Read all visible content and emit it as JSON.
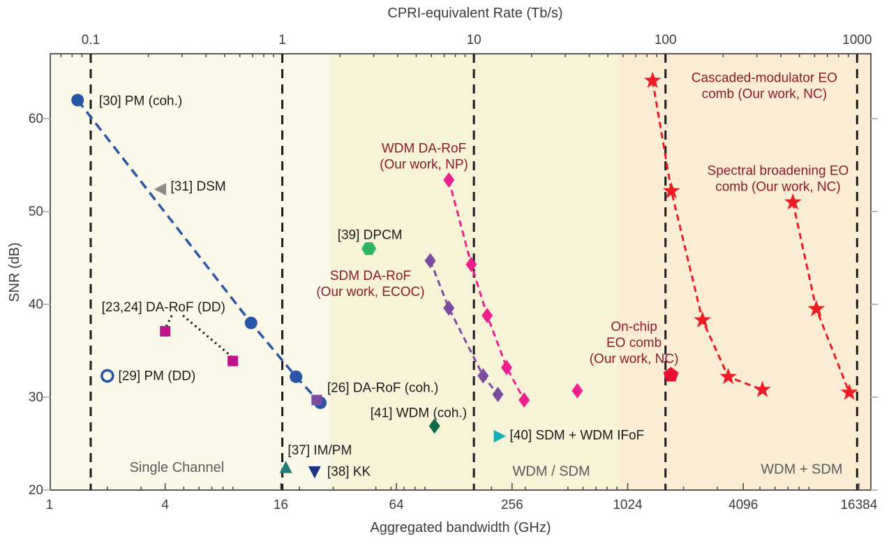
{
  "chart_data": {
    "type": "scatter",
    "top_axis": {
      "title": "CPRI-equivalent Rate (Tb/s)",
      "tick_values": [
        0.1,
        1,
        10,
        100,
        1000
      ],
      "tick_labels": [
        "0.1",
        "1",
        "10",
        "100",
        "1000"
      ]
    },
    "bottom_axis": {
      "title": "Aggregated bandwidth (GHz)",
      "tick_values": [
        1,
        4,
        16,
        64,
        256,
        1024,
        4096,
        16384
      ],
      "tick_labels": [
        "1",
        "4",
        "16",
        "64",
        "256",
        "1024",
        "4096",
        "16384"
      ]
    },
    "left_axis": {
      "title": "SNR (dB)",
      "tick_values": [
        20,
        30,
        40,
        50,
        60
      ],
      "tick_labels": [
        "20",
        "30",
        "40",
        "50",
        "60"
      ]
    },
    "xlim_ghz": [
      1,
      18900
    ],
    "ylim_db": [
      20,
      67
    ],
    "grid": "vertical-dashed",
    "gridlines_cpri_tbs": [
      0.1,
      1,
      10,
      100,
      1000
    ],
    "regions": [
      {
        "label": "Single Channel",
        "from_ghz": 1,
        "to_ghz": 29,
        "fill": "#FAF8E8",
        "label_ghz": 4.6,
        "label_snr": 22.4
      },
      {
        "label": "WDM / SDM",
        "from_ghz": 29,
        "to_ghz": 905,
        "fill": "#F7F3D6",
        "label_ghz": 410,
        "label_snr": 22.0
      },
      {
        "label": "WDM + SDM",
        "from_ghz": 905,
        "to_ghz": 18900,
        "fill": "#FAEDD4",
        "label_ghz": 8250,
        "label_snr": 22.2
      }
    ],
    "region_label_color": "#5a5a5a",
    "series": [
      {
        "name": "[30] PM (coh.)",
        "marker": "circle",
        "color": "#2A55A6",
        "line": "dashed",
        "points": [
          [
            1.4,
            62.0
          ],
          [
            11.2,
            38.0
          ],
          [
            19.2,
            32.2
          ],
          [
            25.7,
            29.4
          ]
        ]
      },
      {
        "name": "[31] DSM",
        "marker": "triangle-left",
        "color": "#8C8C8C",
        "line": "none",
        "points": [
          [
            3.8,
            52.4
          ]
        ]
      },
      {
        "name": "[23,24] DA-RoF (DD)",
        "marker": "square",
        "color": "#C0148C",
        "line": "none",
        "points": [
          [
            4.0,
            37.1
          ],
          [
            9.0,
            33.9
          ]
        ]
      },
      {
        "name": "[29] PM (DD)",
        "marker": "circle-open",
        "color": "#2A55A6",
        "line": "none",
        "points": [
          [
            2.0,
            32.3
          ]
        ]
      },
      {
        "name": "[26] DA-RoF (coh.)",
        "marker": "square",
        "color": "#7C4BA0",
        "line": "none",
        "points": [
          [
            24.6,
            29.7
          ]
        ]
      },
      {
        "name": "[39] DPCM",
        "marker": "hexagon",
        "color": "#2FB45F",
        "line": "none",
        "points": [
          [
            46,
            46.0
          ]
        ]
      },
      {
        "name": "SDM DA-RoF (Our work, ECOC)",
        "marker": "diamond",
        "color": "#7C4BA0",
        "line": "dashed",
        "points": [
          [
            96,
            44.7
          ],
          [
            120,
            39.6
          ],
          [
            181,
            32.3
          ],
          [
            216,
            30.3
          ]
        ]
      },
      {
        "name": "WDM DA-RoF (Our work, NP)",
        "marker": "diamond",
        "color": "#ED1E8F",
        "line": "dashed",
        "points": [
          [
            120,
            53.4
          ],
          [
            157,
            44.3
          ],
          [
            190,
            38.8
          ],
          [
            240,
            33.2
          ],
          [
            296,
            29.7
          ]
        ]
      },
      {
        "name": "WDM DA-RoF (Our work, NP) extra point",
        "marker": "diamond",
        "color": "#ED1E8F",
        "line": "none",
        "points": [
          [
            560,
            30.7
          ]
        ]
      },
      {
        "name": "[41] WDM (coh.)",
        "marker": "diamond",
        "color": "#0E6B45",
        "line": "none",
        "points": [
          [
            101,
            26.9
          ]
        ]
      },
      {
        "name": "[37] IM/PM",
        "marker": "triangle-up",
        "color": "#207F78",
        "line": "none",
        "points": [
          [
            17,
            22.4
          ]
        ]
      },
      {
        "name": "[38] KK",
        "marker": "triangle-down",
        "color": "#1B3387",
        "line": "none",
        "points": [
          [
            24,
            22.0
          ]
        ]
      },
      {
        "name": "[40] SDM + WDM IFoF",
        "marker": "triangle-right",
        "color": "#12ADB5",
        "line": "none",
        "points": [
          [
            219,
            25.8
          ]
        ]
      },
      {
        "name": "Cascaded-modulator EO comb (Our work, NC)",
        "marker": "star",
        "color": "#EC1C24",
        "line": "dashed",
        "points": [
          [
            1380,
            64.1
          ],
          [
            1730,
            52.2
          ],
          [
            2510,
            38.3
          ],
          [
            3420,
            32.2
          ],
          [
            5150,
            30.8
          ]
        ]
      },
      {
        "name": "Spectral broadening EO comb (Our work, NC)",
        "marker": "star",
        "color": "#EC1C24",
        "line": "dashed",
        "points": [
          [
            7420,
            51.0
          ],
          [
            9830,
            39.5
          ],
          [
            14600,
            30.5
          ]
        ]
      },
      {
        "name": "On-chip EO comb (Our work, NC)",
        "marker": "pentagon",
        "color": "#E8112D",
        "line": "none",
        "points": [
          [
            1720,
            32.4
          ]
        ]
      }
    ],
    "connectors": [
      {
        "from": [
          4.33,
          38.8
        ],
        "to": [
          4.05,
          37.6
        ]
      },
      {
        "from": [
          4.95,
          38.8
        ],
        "to": [
          8.86,
          34.4
        ]
      }
    ],
    "annotations": [
      {
        "lines": [
          "[30] PM (coh.)"
        ],
        "ghz": 1.81,
        "snr": 61.9,
        "anchor": "start",
        "color": "#1a1a1a"
      },
      {
        "lines": [
          "[31] DSM"
        ],
        "ghz": 4.27,
        "snr": 52.7,
        "anchor": "start",
        "color": "#1a1a1a"
      },
      {
        "lines": [
          "[23,24] DA-RoF (DD)"
        ],
        "ghz": 3.92,
        "snr": 39.7,
        "anchor": "middle",
        "color": "#1a1a1a"
      },
      {
        "lines": [
          "[29] PM (DD)"
        ],
        "ghz": 2.28,
        "snr": 32.3,
        "anchor": "start",
        "color": "#1a1a1a"
      },
      {
        "lines": [
          "[26] DA-RoF (coh.)"
        ],
        "ghz": 27.9,
        "snr": 31.0,
        "anchor": "start",
        "color": "#1a1a1a"
      },
      {
        "lines": [
          "[39] DPCM"
        ],
        "ghz": 46.6,
        "snr": 47.5,
        "anchor": "middle",
        "color": "#1a1a1a"
      },
      {
        "lines": [
          "[41] WDM (coh.)"
        ],
        "ghz": 83.5,
        "snr": 28.3,
        "anchor": "middle",
        "color": "#1a1a1a"
      },
      {
        "lines": [
          "[37] IM/PM"
        ],
        "ghz": 17.4,
        "snr": 24.3,
        "anchor": "start",
        "color": "#1a1a1a"
      },
      {
        "lines": [
          "[38] KK"
        ],
        "ghz": 27.9,
        "snr": 22.0,
        "anchor": "start",
        "color": "#1a1a1a"
      },
      {
        "lines": [
          "[40] SDM + WDM IFoF"
        ],
        "ghz": 249,
        "snr": 25.9,
        "anchor": "start",
        "color": "#1a1a1a"
      },
      {
        "lines": [
          "WDM DA-RoF",
          "(Our work, NP)"
        ],
        "ghz": 89,
        "snr": 56.8,
        "anchor": "middle",
        "color": "#8B1A2B"
      },
      {
        "lines": [
          "SDM DA-RoF",
          "(Our work, ECOC)"
        ],
        "ghz": 46.9,
        "snr": 43.1,
        "anchor": "middle",
        "color": "#8B1A2B"
      },
      {
        "lines": [
          "On-chip",
          "EO comb",
          "(Our work, NC)"
        ],
        "ghz": 1105,
        "snr": 37.6,
        "anchor": "middle",
        "color": "#8B1A2B"
      },
      {
        "lines": [
          "Cascaded-modulator EO",
          "comb (Our work, NC)"
        ],
        "ghz": 5270,
        "snr": 64.4,
        "anchor": "middle",
        "color": "#8B1A2B"
      },
      {
        "lines": [
          "Spectral broadening EO",
          "comb (Our work, NC)"
        ],
        "ghz": 6210,
        "snr": 54.4,
        "anchor": "middle",
        "color": "#8B1A2B"
      }
    ],
    "styles": {
      "frame_color": "#4a4a4a",
      "tick_label_color": "#3a3a3a",
      "axis_title_color": "#3a3a3a",
      "gridline_color": "#1a1a1a",
      "connector_color": "#1a1a1a"
    }
  }
}
